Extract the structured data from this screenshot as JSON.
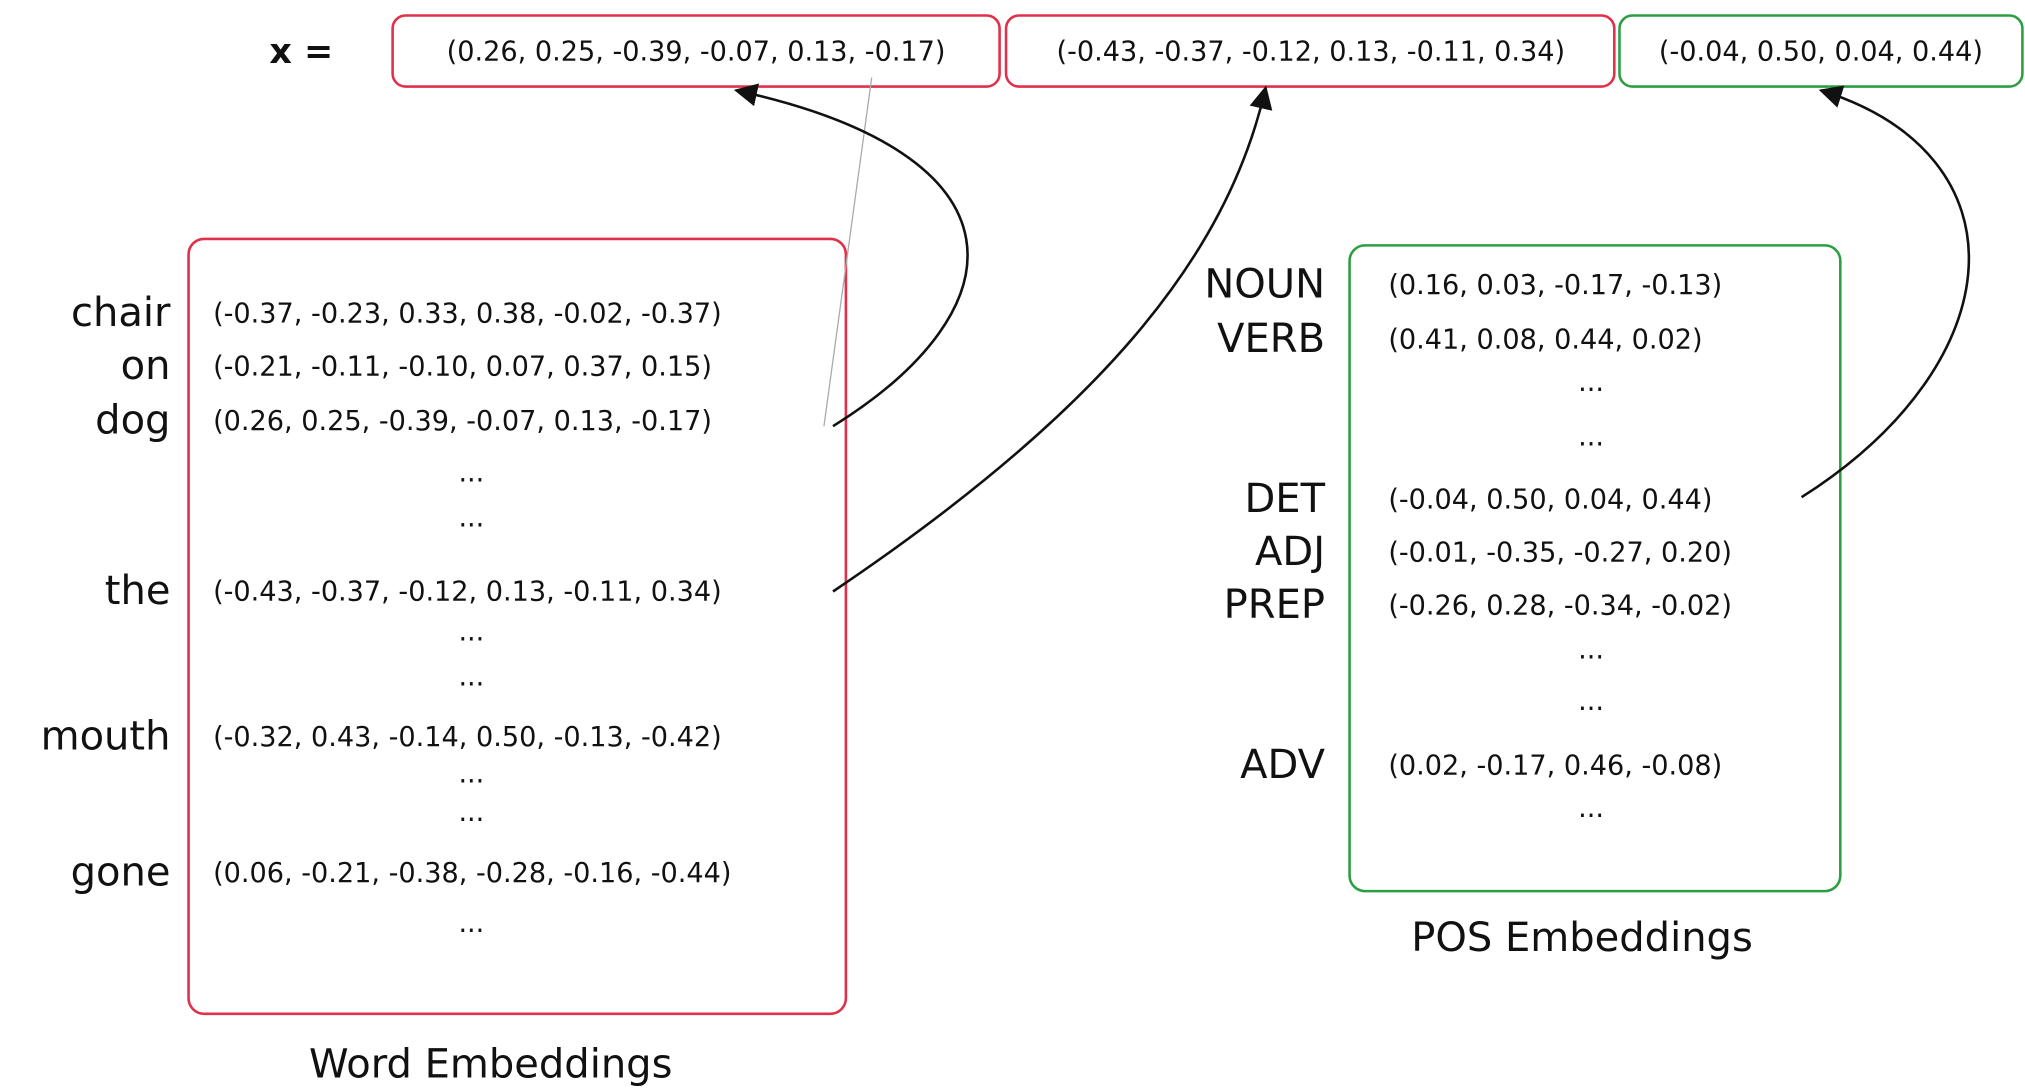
{
  "concat": {
    "label": "x =",
    "parts": [
      "(0.26, 0.25, -0.39, -0.07, 0.13, -0.17)",
      "(-0.43, -0.37, -0.12, 0.13, -0.11, 0.34)",
      "(-0.04, 0.50, 0.04, 0.44)"
    ]
  },
  "word_embeddings": {
    "title": "Word Embeddings",
    "rows": [
      {
        "word": "chair",
        "vector": "(-0.37, -0.23, 0.33, 0.38, -0.02, -0.37)"
      },
      {
        "word": "on",
        "vector": "(-0.21, -0.11, -0.10, 0.07, 0.37, 0.15)"
      },
      {
        "word": "dog",
        "vector": "(0.26, 0.25, -0.39, -0.07, 0.13, -0.17)"
      },
      {
        "vector": "..."
      },
      {
        "vector": "..."
      },
      {
        "word": "the",
        "vector": "(-0.43, -0.37, -0.12, 0.13, -0.11, 0.34)"
      },
      {
        "vector": "..."
      },
      {
        "vector": "..."
      },
      {
        "word": "mouth",
        "vector": "(-0.32, 0.43, -0.14, 0.50, -0.13, -0.42)"
      },
      {
        "vector": "..."
      },
      {
        "vector": "..."
      },
      {
        "word": "gone",
        "vector": "(0.06, -0.21, -0.38, -0.28, -0.16, -0.44)"
      },
      {
        "vector": "..."
      }
    ]
  },
  "pos_embeddings": {
    "title": "POS Embeddings",
    "rows": [
      {
        "word": "NOUN",
        "vector": "(0.16, 0.03, -0.17, -0.13)"
      },
      {
        "word": "VERB",
        "vector": "(0.41, 0.08, 0.44, 0.02)"
      },
      {
        "vector": "..."
      },
      {
        "vector": "..."
      },
      {
        "word": "DET",
        "vector": "(-0.04, 0.50, 0.04, 0.44)"
      },
      {
        "word": "ADJ",
        "vector": "(-0.01, -0.35, -0.27, 0.20)"
      },
      {
        "word": "PREP",
        "vector": "(-0.26, 0.28, -0.34, -0.02)"
      },
      {
        "vector": "..."
      },
      {
        "vector": "..."
      },
      {
        "word": "ADV",
        "vector": "(0.02, -0.17, 0.46, -0.08)"
      },
      {
        "vector": "..."
      }
    ]
  }
}
